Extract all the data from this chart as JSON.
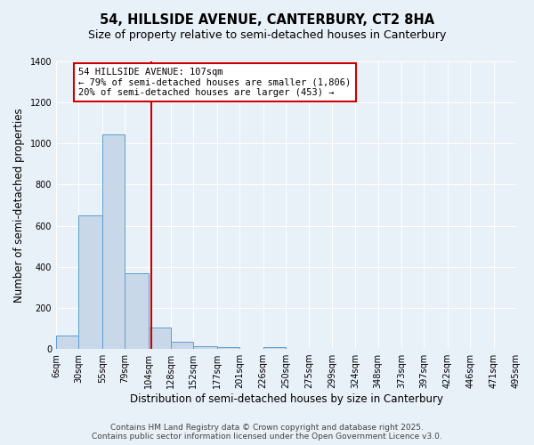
{
  "title": "54, HILLSIDE AVENUE, CANTERBURY, CT2 8HA",
  "subtitle": "Size of property relative to semi-detached houses in Canterbury",
  "xlabel": "Distribution of semi-detached houses by size in Canterbury",
  "ylabel": "Number of semi-detached properties",
  "bins": [
    6,
    30,
    55,
    79,
    104,
    128,
    152,
    177,
    201,
    226,
    250,
    275,
    299,
    324,
    348,
    373,
    397,
    422,
    446,
    471,
    495
  ],
  "bin_labels": [
    "6sqm",
    "30sqm",
    "55sqm",
    "79sqm",
    "104sqm",
    "128sqm",
    "152sqm",
    "177sqm",
    "201sqm",
    "226sqm",
    "250sqm",
    "275sqm",
    "299sqm",
    "324sqm",
    "348sqm",
    "373sqm",
    "397sqm",
    "422sqm",
    "446sqm",
    "471sqm",
    "495sqm"
  ],
  "counts": [
    65,
    650,
    1045,
    370,
    105,
    35,
    15,
    10,
    0,
    10,
    0,
    0,
    0,
    0,
    0,
    0,
    0,
    0,
    0,
    0
  ],
  "bar_color": "#c8d8e8",
  "bar_edge_color": "#5a9fd4",
  "property_line_x": 107,
  "property_line_color": "#cc0000",
  "annotation_line1": "54 HILLSIDE AVENUE: 107sqm",
  "annotation_line2": "← 79% of semi-detached houses are smaller (1,806)",
  "annotation_line3": "20% of semi-detached houses are larger (453) →",
  "annotation_box_color": "#ffffff",
  "annotation_box_edge_color": "#cc0000",
  "ylim": [
    0,
    1400
  ],
  "yticks": [
    0,
    200,
    400,
    600,
    800,
    1000,
    1200,
    1400
  ],
  "background_color": "#e8f0f8",
  "grid_color": "#ffffff",
  "footer_line1": "Contains HM Land Registry data © Crown copyright and database right 2025.",
  "footer_line2": "Contains public sector information licensed under the Open Government Licence v3.0.",
  "title_fontsize": 10.5,
  "subtitle_fontsize": 9,
  "axis_label_fontsize": 8.5,
  "tick_fontsize": 7,
  "annotation_fontsize": 7.5,
  "footer_fontsize": 6.5
}
